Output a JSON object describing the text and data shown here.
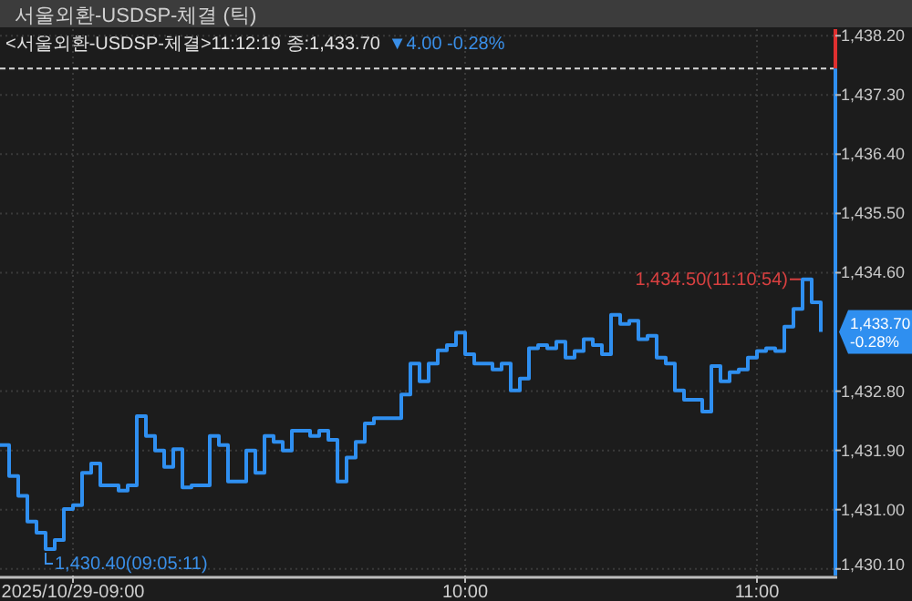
{
  "chart_data": {
    "type": "step",
    "title": "서울외환-USDSP-체결 (틱)",
    "subtitle": "<서울외환-USDSP-체결>11:12:19 종:1,433.70",
    "annotations": [
      "▼4.00  -0.28%",
      "1,430.40(09:05:11)",
      "1,434.50(11:10:54)",
      "1,433.70\n-0.28%"
    ],
    "categories": [
      null,
      null,
      null,
      null,
      null,
      null,
      null,
      null,
      "2025/10/29-09:00",
      null,
      null,
      null,
      null,
      null,
      null,
      null,
      null,
      null,
      null,
      null,
      null,
      null,
      null,
      null,
      null,
      null,
      null,
      null,
      null,
      null,
      null,
      null,
      null,
      null,
      null,
      null,
      null,
      null,
      null,
      null,
      null,
      null,
      null,
      null,
      null,
      null,
      null,
      null,
      null,
      null,
      null,
      "10:00",
      null,
      null,
      null,
      null,
      null,
      null,
      null,
      null,
      null,
      null,
      null,
      null,
      null,
      null,
      null,
      null,
      null,
      null,
      null,
      null,
      null,
      null,
      null,
      null,
      null,
      null,
      null,
      null,
      null,
      null,
      null,
      "11:00",
      null,
      null,
      null,
      null,
      null,
      null,
      null
    ],
    "series": [
      {
        "color": "#2f8ff0",
        "values": [
          1431.98,
          1431.51,
          1431.21,
          1430.82,
          1430.65,
          1430.4,
          1430.54,
          1431.01,
          1431.07,
          1431.56,
          1431.7,
          1431.37,
          1431.37,
          1431.29,
          1431.37,
          1432.42,
          1432.12,
          1431.9,
          1431.65,
          1431.92,
          1431.34,
          1431.37,
          1431.37,
          1432.12,
          1431.98,
          1431.43,
          1431.43,
          1431.9,
          1431.56,
          1432.12,
          1432.03,
          1431.9,
          1432.2,
          1432.2,
          1432.12,
          1432.2,
          1432.06,
          1431.43,
          1431.79,
          1432.03,
          1432.31,
          1432.39,
          1432.39,
          1432.39,
          1432.75,
          1433.22,
          1432.95,
          1433.22,
          1433.42,
          1433.5,
          1433.69,
          1433.36,
          1433.22,
          1433.22,
          1433.13,
          1433.22,
          1432.81,
          1432.99,
          1433.45,
          1433.5,
          1433.45,
          1433.55,
          1433.31,
          1433.41,
          1433.59,
          1433.5,
          1433.36,
          1433.96,
          1433.82,
          1433.87,
          1433.59,
          1433.64,
          1433.31,
          1433.22,
          1432.81,
          1432.67,
          1432.67,
          1432.49,
          1433.18,
          1432.95,
          1433.09,
          1433.13,
          1433.31,
          1433.41,
          1433.45,
          1433.41,
          1433.78,
          1434.05,
          1434.5,
          1434.15,
          1433.7
        ]
      }
    ],
    "ylim": [
      1430.0,
      1438.3
    ],
    "yticks": [
      {
        "value": 1430.1,
        "label": "1,430.10"
      },
      {
        "value": 1431.0,
        "label": "1,431.00"
      },
      {
        "value": 1431.9,
        "label": "1,431.90"
      },
      {
        "value": 1432.8,
        "label": "1,432.80"
      },
      {
        "value": 1434.6,
        "label": "1,434.60"
      },
      {
        "value": 1435.5,
        "label": "1,435.50"
      },
      {
        "value": 1436.4,
        "label": "1,436.40"
      },
      {
        "value": 1437.3,
        "label": "1,437.30"
      },
      {
        "value": 1438.2,
        "label": "1,438.20"
      }
    ],
    "ref_lines": [
      {
        "axis": "y",
        "value": 1437.7,
        "color": "#d8d8d8",
        "line_style": "dashed"
      }
    ],
    "grid": true,
    "line_style": "solid"
  }
}
